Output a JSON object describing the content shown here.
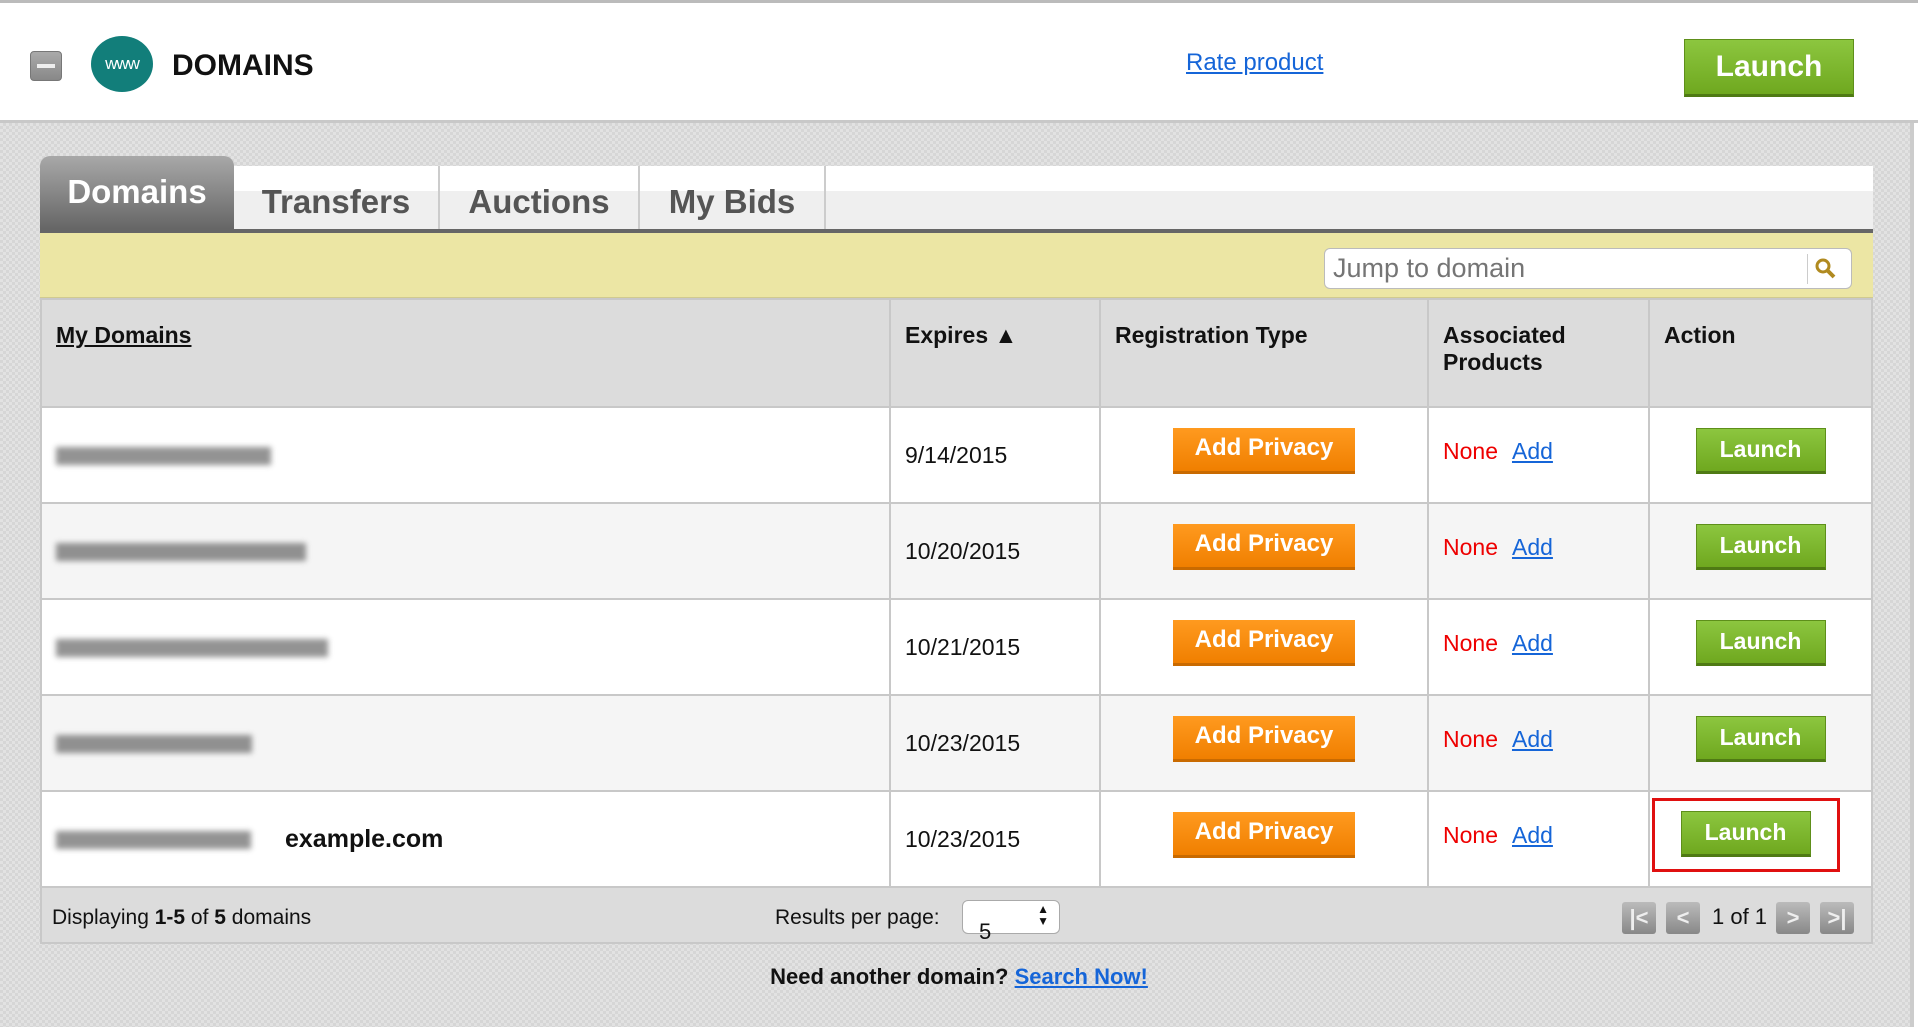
{
  "header": {
    "title": "DOMAINS",
    "logo_text": "www",
    "rate_link": "Rate product",
    "launch": "Launch"
  },
  "tabs": [
    {
      "label": "Domains",
      "active": true
    },
    {
      "label": "Transfers"
    },
    {
      "label": "Auctions"
    },
    {
      "label": "My Bids"
    }
  ],
  "search": {
    "placeholder": "Jump to domain"
  },
  "table": {
    "headers": [
      "My Domains",
      "Expires ▲",
      "Registration Type",
      "Associated Products",
      "Action"
    ],
    "rows": [
      {
        "domain_label": "",
        "expires": "9/14/2015",
        "reg": "Add Privacy",
        "none": "None",
        "add": "Add",
        "action": "Launch"
      },
      {
        "domain_label": "",
        "expires": "10/20/2015",
        "reg": "Add Privacy",
        "none": "None",
        "add": "Add",
        "action": "Launch"
      },
      {
        "domain_label": "",
        "expires": "10/21/2015",
        "reg": "Add Privacy",
        "none": "None",
        "add": "Add",
        "action": "Launch"
      },
      {
        "domain_label": "",
        "expires": "10/23/2015",
        "reg": "Add Privacy",
        "none": "None",
        "add": "Add",
        "action": "Launch"
      },
      {
        "domain_label": "example.com",
        "expires": "10/23/2015",
        "reg": "Add Privacy",
        "none": "None",
        "add": "Add",
        "action": "Launch",
        "highlighted": true
      }
    ]
  },
  "footer": {
    "displaying_pre": "Displaying ",
    "range": "1-5",
    "of": " of ",
    "total": "5",
    "suffix": " domains",
    "rpp_label": "Results per page:",
    "rpp_value": "5",
    "page_text": "1 of 1"
  },
  "bottom": {
    "text": "Need another domain?",
    "link": "Search Now!"
  },
  "colors": {
    "green": "#7cb82f",
    "orange": "#f58a0b",
    "teal": "#127e7a",
    "highlight": "#e01010"
  }
}
